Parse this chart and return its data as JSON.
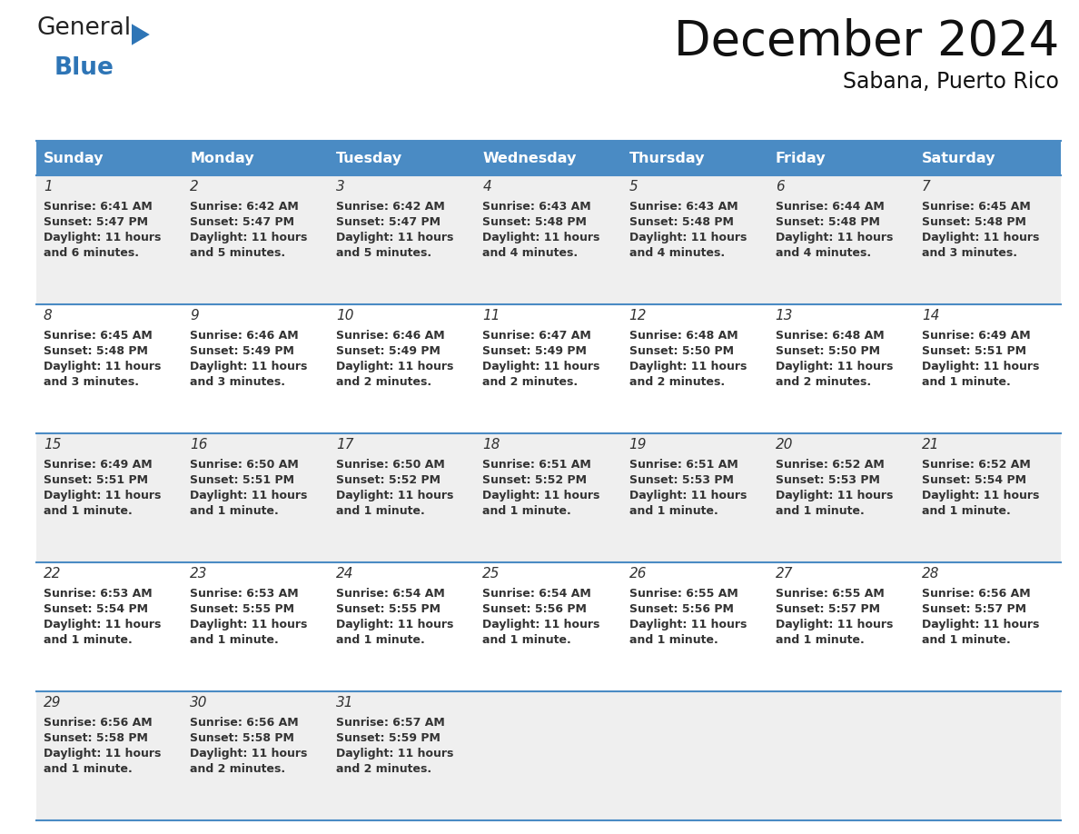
{
  "title": "December 2024",
  "subtitle": "Sabana, Puerto Rico",
  "header_bg_color": "#4A8BC4",
  "header_text_color": "#FFFFFF",
  "cell_bg_even": "#EFEFEF",
  "cell_bg_odd": "#FFFFFF",
  "border_color": "#4A8BC4",
  "text_color": "#333333",
  "days_of_week": [
    "Sunday",
    "Monday",
    "Tuesday",
    "Wednesday",
    "Thursday",
    "Friday",
    "Saturday"
  ],
  "calendar_data": [
    [
      {
        "day": "1",
        "sunrise": "6:41 AM",
        "sunset": "5:47 PM",
        "daylight": "11 hours",
        "daylight2": "and 6 minutes."
      },
      {
        "day": "2",
        "sunrise": "6:42 AM",
        "sunset": "5:47 PM",
        "daylight": "11 hours",
        "daylight2": "and 5 minutes."
      },
      {
        "day": "3",
        "sunrise": "6:42 AM",
        "sunset": "5:47 PM",
        "daylight": "11 hours",
        "daylight2": "and 5 minutes."
      },
      {
        "day": "4",
        "sunrise": "6:43 AM",
        "sunset": "5:48 PM",
        "daylight": "11 hours",
        "daylight2": "and 4 minutes."
      },
      {
        "day": "5",
        "sunrise": "6:43 AM",
        "sunset": "5:48 PM",
        "daylight": "11 hours",
        "daylight2": "and 4 minutes."
      },
      {
        "day": "6",
        "sunrise": "6:44 AM",
        "sunset": "5:48 PM",
        "daylight": "11 hours",
        "daylight2": "and 4 minutes."
      },
      {
        "day": "7",
        "sunrise": "6:45 AM",
        "sunset": "5:48 PM",
        "daylight": "11 hours",
        "daylight2": "and 3 minutes."
      }
    ],
    [
      {
        "day": "8",
        "sunrise": "6:45 AM",
        "sunset": "5:48 PM",
        "daylight": "11 hours",
        "daylight2": "and 3 minutes."
      },
      {
        "day": "9",
        "sunrise": "6:46 AM",
        "sunset": "5:49 PM",
        "daylight": "11 hours",
        "daylight2": "and 3 minutes."
      },
      {
        "day": "10",
        "sunrise": "6:46 AM",
        "sunset": "5:49 PM",
        "daylight": "11 hours",
        "daylight2": "and 2 minutes."
      },
      {
        "day": "11",
        "sunrise": "6:47 AM",
        "sunset": "5:49 PM",
        "daylight": "11 hours",
        "daylight2": "and 2 minutes."
      },
      {
        "day": "12",
        "sunrise": "6:48 AM",
        "sunset": "5:50 PM",
        "daylight": "11 hours",
        "daylight2": "and 2 minutes."
      },
      {
        "day": "13",
        "sunrise": "6:48 AM",
        "sunset": "5:50 PM",
        "daylight": "11 hours",
        "daylight2": "and 2 minutes."
      },
      {
        "day": "14",
        "sunrise": "6:49 AM",
        "sunset": "5:51 PM",
        "daylight": "11 hours",
        "daylight2": "and 1 minute."
      }
    ],
    [
      {
        "day": "15",
        "sunrise": "6:49 AM",
        "sunset": "5:51 PM",
        "daylight": "11 hours",
        "daylight2": "and 1 minute."
      },
      {
        "day": "16",
        "sunrise": "6:50 AM",
        "sunset": "5:51 PM",
        "daylight": "11 hours",
        "daylight2": "and 1 minute."
      },
      {
        "day": "17",
        "sunrise": "6:50 AM",
        "sunset": "5:52 PM",
        "daylight": "11 hours",
        "daylight2": "and 1 minute."
      },
      {
        "day": "18",
        "sunrise": "6:51 AM",
        "sunset": "5:52 PM",
        "daylight": "11 hours",
        "daylight2": "and 1 minute."
      },
      {
        "day": "19",
        "sunrise": "6:51 AM",
        "sunset": "5:53 PM",
        "daylight": "11 hours",
        "daylight2": "and 1 minute."
      },
      {
        "day": "20",
        "sunrise": "6:52 AM",
        "sunset": "5:53 PM",
        "daylight": "11 hours",
        "daylight2": "and 1 minute."
      },
      {
        "day": "21",
        "sunrise": "6:52 AM",
        "sunset": "5:54 PM",
        "daylight": "11 hours",
        "daylight2": "and 1 minute."
      }
    ],
    [
      {
        "day": "22",
        "sunrise": "6:53 AM",
        "sunset": "5:54 PM",
        "daylight": "11 hours",
        "daylight2": "and 1 minute."
      },
      {
        "day": "23",
        "sunrise": "6:53 AM",
        "sunset": "5:55 PM",
        "daylight": "11 hours",
        "daylight2": "and 1 minute."
      },
      {
        "day": "24",
        "sunrise": "6:54 AM",
        "sunset": "5:55 PM",
        "daylight": "11 hours",
        "daylight2": "and 1 minute."
      },
      {
        "day": "25",
        "sunrise": "6:54 AM",
        "sunset": "5:56 PM",
        "daylight": "11 hours",
        "daylight2": "and 1 minute."
      },
      {
        "day": "26",
        "sunrise": "6:55 AM",
        "sunset": "5:56 PM",
        "daylight": "11 hours",
        "daylight2": "and 1 minute."
      },
      {
        "day": "27",
        "sunrise": "6:55 AM",
        "sunset": "5:57 PM",
        "daylight": "11 hours",
        "daylight2": "and 1 minute."
      },
      {
        "day": "28",
        "sunrise": "6:56 AM",
        "sunset": "5:57 PM",
        "daylight": "11 hours",
        "daylight2": "and 1 minute."
      }
    ],
    [
      {
        "day": "29",
        "sunrise": "6:56 AM",
        "sunset": "5:58 PM",
        "daylight": "11 hours",
        "daylight2": "and 1 minute."
      },
      {
        "day": "30",
        "sunrise": "6:56 AM",
        "sunset": "5:58 PM",
        "daylight": "11 hours",
        "daylight2": "and 2 minutes."
      },
      {
        "day": "31",
        "sunrise": "6:57 AM",
        "sunset": "5:59 PM",
        "daylight": "11 hours",
        "daylight2": "and 2 minutes."
      },
      null,
      null,
      null,
      null
    ]
  ],
  "logo_blue_color": "#2E75B6",
  "logo_triangle_color": "#2E75B6",
  "fig_width": 11.88,
  "fig_height": 9.18,
  "dpi": 100
}
